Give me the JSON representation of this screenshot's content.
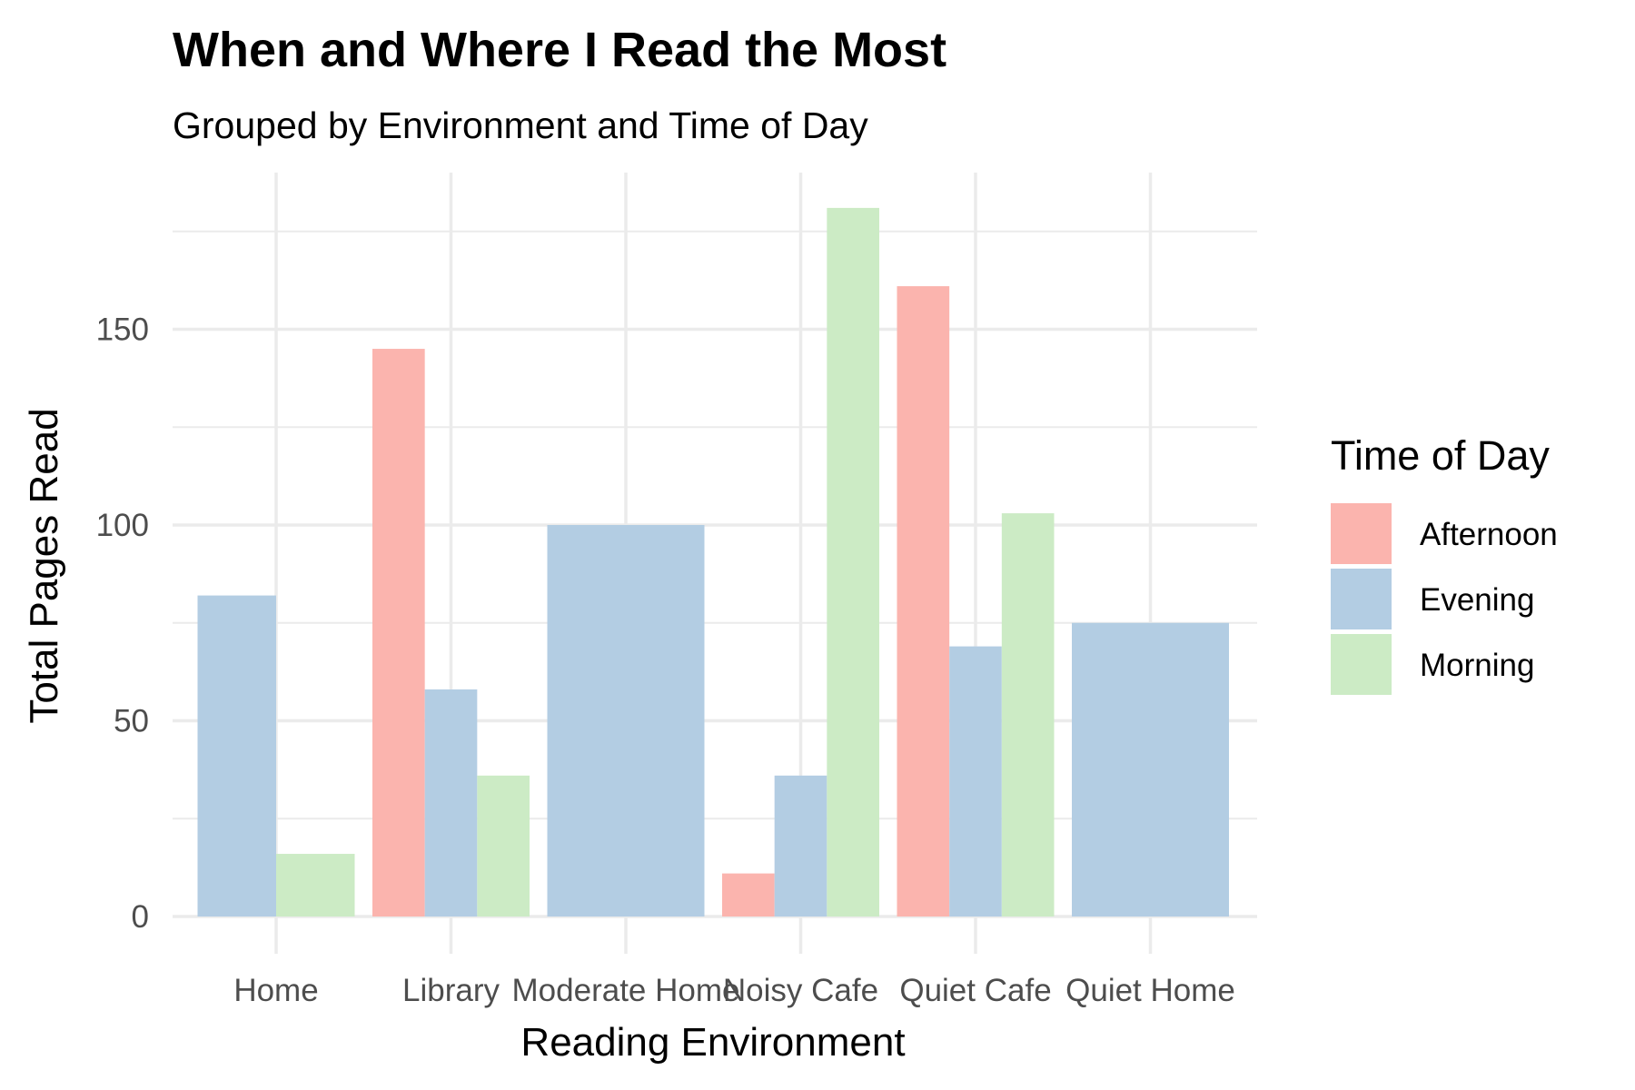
{
  "chart_data": {
    "type": "bar",
    "title": "When and Where I Read the Most",
    "subtitle": "Grouped by Environment and Time of Day",
    "xlabel": "Reading Environment",
    "ylabel": "Total Pages Read",
    "ylim": [
      -8,
      188
    ],
    "yticks": [
      0,
      50,
      100,
      150
    ],
    "grid": true,
    "legend": {
      "title": "Time of Day",
      "position": "right"
    },
    "categories": [
      "Home",
      "Library",
      "Moderate Home",
      "Noisy Cafe",
      "Quiet Cafe",
      "Quiet Home"
    ],
    "series": [
      {
        "name": "Afternoon",
        "color": "#FBB4AE"
      },
      {
        "name": "Evening",
        "color": "#B3CDE3"
      },
      {
        "name": "Morning",
        "color": "#CCEBC5"
      }
    ],
    "groups": [
      {
        "category": "Home",
        "bars": [
          {
            "series": "Evening",
            "value": 82
          },
          {
            "series": "Morning",
            "value": 16
          }
        ]
      },
      {
        "category": "Library",
        "bars": [
          {
            "series": "Afternoon",
            "value": 145
          },
          {
            "series": "Evening",
            "value": 58
          },
          {
            "series": "Morning",
            "value": 36
          }
        ]
      },
      {
        "category": "Moderate Home",
        "bars": [
          {
            "series": "Evening",
            "value": 100
          }
        ]
      },
      {
        "category": "Noisy Cafe",
        "bars": [
          {
            "series": "Afternoon",
            "value": 11
          },
          {
            "series": "Evening",
            "value": 36
          },
          {
            "series": "Morning",
            "value": 181
          }
        ]
      },
      {
        "category": "Quiet Cafe",
        "bars": [
          {
            "series": "Afternoon",
            "value": 161
          },
          {
            "series": "Evening",
            "value": 69
          },
          {
            "series": "Morning",
            "value": 103
          }
        ]
      },
      {
        "category": "Quiet Home",
        "bars": [
          {
            "series": "Evening",
            "value": 75
          }
        ]
      }
    ]
  }
}
